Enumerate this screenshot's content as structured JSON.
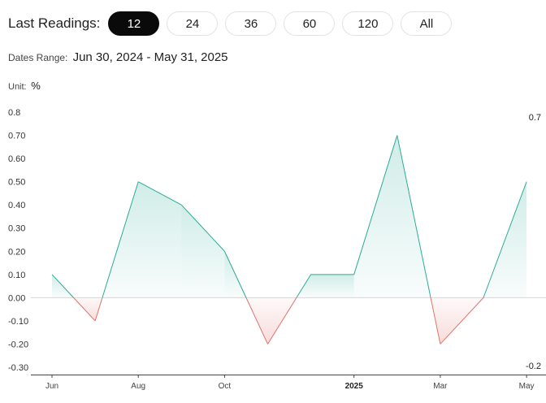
{
  "toolbar": {
    "label": "Last Readings:",
    "buttons": [
      "12",
      "24",
      "36",
      "60",
      "120",
      "All"
    ],
    "active_index": 0
  },
  "range": {
    "label": "Dates Range:",
    "value": "Jun 30, 2024 - May 31, 2025"
  },
  "unit": {
    "label": "Unit:",
    "value": "%"
  },
  "colors": {
    "positive": "#2bab97",
    "negative": "#e2716a",
    "active_pill": "#0a0a0a"
  },
  "chart_data": {
    "type": "area",
    "x": [
      "2024-06",
      "2024-07",
      "2024-08",
      "2024-09",
      "2024-10",
      "2024-11",
      "2024-12",
      "2025-01",
      "2025-02",
      "2025-03",
      "2025-04",
      "2025-05"
    ],
    "values": [
      0.1,
      -0.1,
      0.5,
      0.4,
      0.2,
      -0.2,
      0.1,
      0.1,
      0.7,
      -0.2,
      0.0,
      0.5
    ],
    "ylim": [
      -0.3,
      0.8
    ],
    "yticks": [
      "0.8",
      "0.70",
      "0.60",
      "0.50",
      "0.40",
      "0.30",
      "0.20",
      "0.10",
      "0.00",
      "-0.10",
      "-0.20",
      "-0.30"
    ],
    "xticks": [
      {
        "index": 0,
        "label": "Jun"
      },
      {
        "index": 2,
        "label": "Aug"
      },
      {
        "index": 4,
        "label": "Oct"
      },
      {
        "index": 7,
        "label": "2025",
        "bold": true
      },
      {
        "index": 9,
        "label": "Mar"
      },
      {
        "index": 11,
        "label": "May"
      }
    ],
    "max_label": "0.7",
    "min_label": "-0.2",
    "baseline": 0,
    "grid": false
  }
}
